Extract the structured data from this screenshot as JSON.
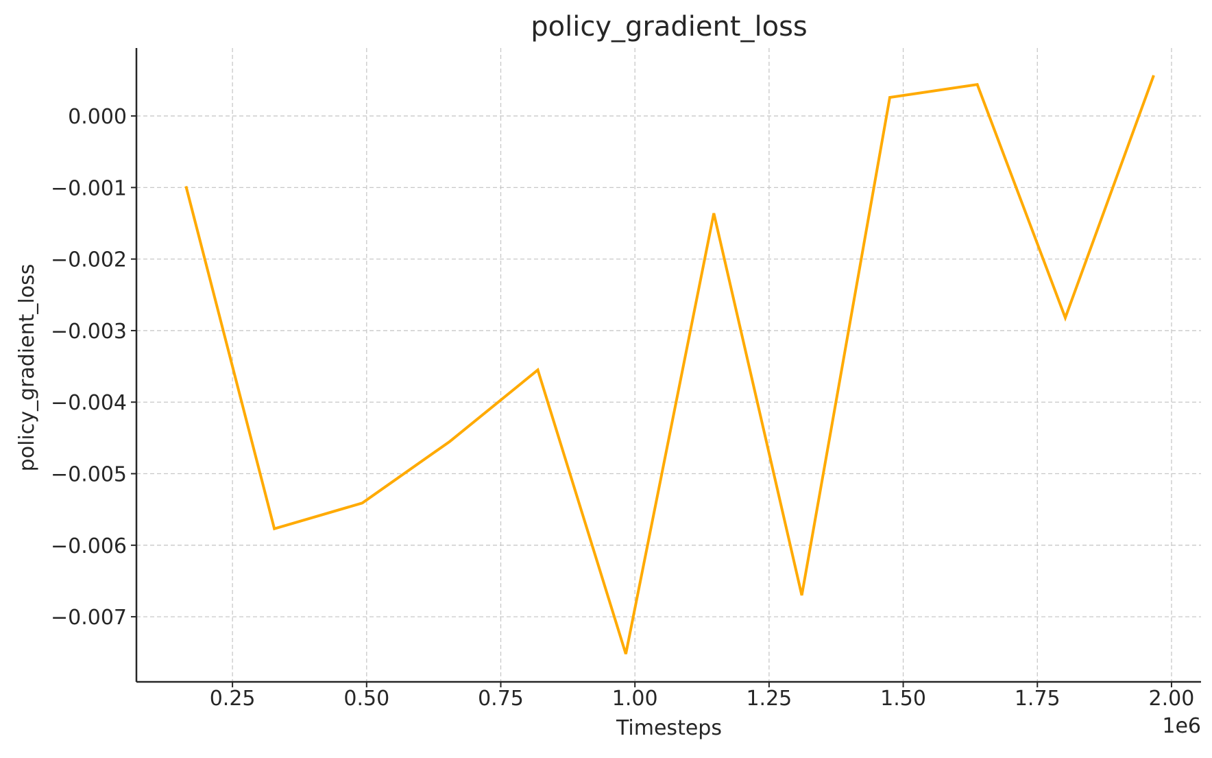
{
  "chart_data": {
    "type": "line",
    "title": "policy_gradient_loss",
    "xlabel": "Timesteps",
    "ylabel": "policy_gradient_loss",
    "x_offset_label": "1e6",
    "xlim": [
      0.071,
      2.055
    ],
    "ylim": [
      -0.00791,
      0.00095
    ],
    "x_ticks": [
      0.25,
      0.5,
      0.75,
      1.0,
      1.25,
      1.5,
      1.75,
      2.0
    ],
    "x_tick_labels": [
      "0.25",
      "0.50",
      "0.75",
      "1.00",
      "1.25",
      "1.50",
      "1.75",
      "2.00"
    ],
    "y_ticks": [
      0.0,
      -0.001,
      -0.002,
      -0.003,
      -0.004,
      -0.005,
      -0.006,
      -0.007
    ],
    "y_tick_labels": [
      "0.000",
      "−0.001",
      "−0.002",
      "−0.003",
      "−0.004",
      "−0.005",
      "−0.006",
      "−0.007"
    ],
    "grid": true,
    "series": [
      {
        "color": "#FFAA00",
        "x": [
          0.164,
          0.328,
          0.492,
          0.655,
          0.819,
          0.983,
          1.147,
          1.311,
          1.475,
          1.638,
          1.802,
          1.966
        ],
        "y": [
          -0.001,
          -0.00577,
          -0.00541,
          -0.00455,
          -0.00355,
          -0.00752,
          -0.00136,
          -0.0067,
          0.00026,
          0.00044,
          -0.00282,
          0.00055
        ]
      }
    ]
  }
}
